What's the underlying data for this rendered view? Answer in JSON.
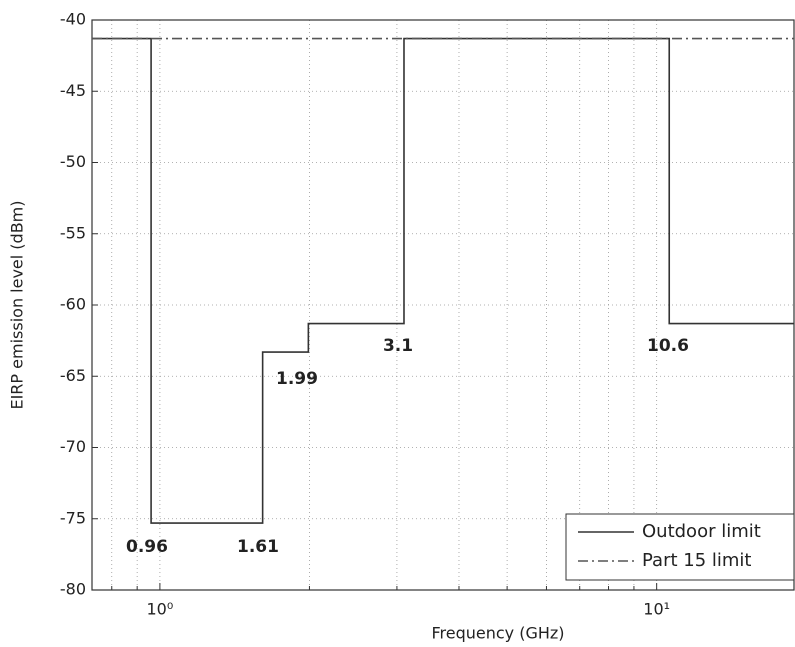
{
  "chart_data": {
    "type": "line",
    "xlabel": "Frequency (GHz)",
    "ylabel": "EIRP emission level (dBm)",
    "xscale": "log",
    "xlim": [
      0.73,
      18.9
    ],
    "ylim": [
      -80,
      -40
    ],
    "xticks": [
      {
        "value": 1,
        "label": "10⁰"
      },
      {
        "value": 10,
        "label": "10¹"
      }
    ],
    "xminorticks": [
      0.8,
      0.9,
      2,
      3,
      4,
      5,
      6,
      7,
      8,
      9
    ],
    "yticks": [
      -80,
      -75,
      -70,
      -65,
      -60,
      -55,
      -50,
      -45,
      -40
    ],
    "grid": true,
    "legend": "lower right",
    "series": [
      {
        "name": "Outdoor limit",
        "color": "#333333",
        "style": "solid",
        "x": [
          0.73,
          0.96,
          0.96,
          1.61,
          1.61,
          1.99,
          1.99,
          3.1,
          3.1,
          10.6,
          10.6,
          18.9
        ],
        "values": [
          -41.3,
          -41.3,
          -75.3,
          -75.3,
          -63.3,
          -63.3,
          -61.3,
          -61.3,
          -41.3,
          -41.3,
          -61.3,
          -61.3
        ]
      },
      {
        "name": "Part 15 limit",
        "color": "#555555",
        "style": "dashdot",
        "x": [
          0.73,
          18.9
        ],
        "values": [
          -41.3,
          -41.3
        ]
      }
    ],
    "annotations": [
      "0.96",
      "1.61",
      "1.99",
      "3.1",
      "10.6"
    ]
  }
}
